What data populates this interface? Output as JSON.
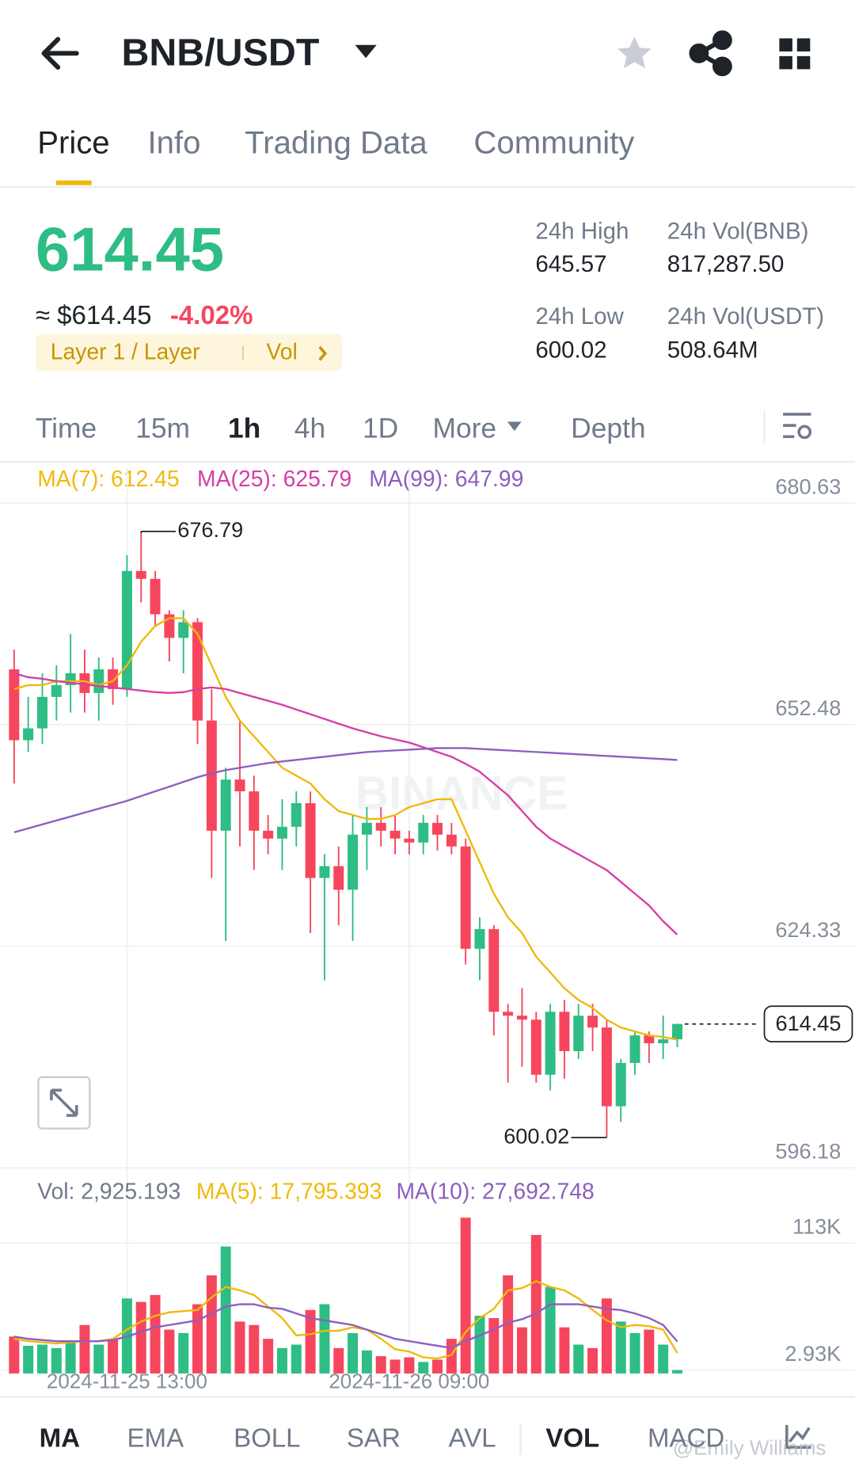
{
  "header": {
    "title": "BNB/USDT"
  },
  "tabs": [
    "Price",
    "Info",
    "Trading Data",
    "Community"
  ],
  "ticker": {
    "price": "614.45",
    "approx": "≈ $614.45",
    "change": "-4.02%",
    "tag": "Layer 1 / Layer",
    "tag_link": "Vol",
    "stats": [
      {
        "label": "24h High",
        "value": "645.57"
      },
      {
        "label": "24h Vol(BNB)",
        "value": "817,287.50"
      },
      {
        "label": "24h Low",
        "value": "600.02"
      },
      {
        "label": "24h Vol(USDT)",
        "value": "508.64M"
      }
    ]
  },
  "intervals": [
    "Time",
    "15m",
    "1h",
    "4h",
    "1D",
    "More",
    "Depth"
  ],
  "chart_data": [
    {
      "type": "candlestick",
      "legend": [
        {
          "text": "MA(7): 612.45",
          "color": "#f0b90b"
        },
        {
          "text": "MA(25): 625.79",
          "color": "#d63fa4"
        },
        {
          "text": "MA(99): 647.99",
          "color": "#8c5fbf"
        }
      ],
      "up_color": "#2ebd85",
      "down_color": "#f6465d",
      "ylim": [
        596.18,
        680.63
      ],
      "yticks": [
        680.63,
        652.48,
        624.33,
        596.18
      ],
      "xticks": [
        {
          "value": 8,
          "label": "2024-11-25 13:00"
        },
        {
          "value": 28,
          "label": "2024-11-26 09:00"
        }
      ],
      "grid": true,
      "candles": [
        {
          "open": 659.5,
          "high": 662.0,
          "low": 645.0,
          "close": 650.5
        },
        {
          "open": 650.5,
          "high": 656.0,
          "low": 649.0,
          "close": 652.0
        },
        {
          "open": 652.0,
          "high": 659.0,
          "low": 650.0,
          "close": 656.0
        },
        {
          "open": 656.0,
          "high": 660.0,
          "low": 653.0,
          "close": 657.5
        },
        {
          "open": 657.5,
          "high": 664.0,
          "low": 654.0,
          "close": 659.0
        },
        {
          "open": 659.0,
          "high": 662.0,
          "low": 654.0,
          "close": 656.5
        },
        {
          "open": 656.5,
          "high": 661.0,
          "low": 653.0,
          "close": 659.5
        },
        {
          "open": 659.5,
          "high": 661.0,
          "low": 655.0,
          "close": 657.0
        },
        {
          "open": 657.0,
          "high": 674.0,
          "low": 656.0,
          "close": 672.0
        },
        {
          "open": 672.0,
          "high": 676.79,
          "low": 668.0,
          "close": 671.0
        },
        {
          "open": 671.0,
          "high": 672.0,
          "low": 665.0,
          "close": 666.5
        },
        {
          "open": 666.5,
          "high": 667.0,
          "low": 660.5,
          "close": 663.5
        },
        {
          "open": 663.5,
          "high": 667.0,
          "low": 659.0,
          "close": 665.5
        },
        {
          "open": 665.5,
          "high": 666.0,
          "low": 650.0,
          "close": 653.0
        },
        {
          "open": 653.0,
          "high": 657.0,
          "low": 633.0,
          "close": 639.0
        },
        {
          "open": 639.0,
          "high": 647.0,
          "low": 625.0,
          "close": 645.5
        },
        {
          "open": 645.5,
          "high": 653.0,
          "low": 637.0,
          "close": 644.0
        },
        {
          "open": 644.0,
          "high": 646.0,
          "low": 634.0,
          "close": 639.0
        },
        {
          "open": 639.0,
          "high": 641.0,
          "low": 636.0,
          "close": 638.0
        },
        {
          "open": 638.0,
          "high": 643.0,
          "low": 634.0,
          "close": 639.5
        },
        {
          "open": 639.5,
          "high": 644.0,
          "low": 637.0,
          "close": 642.5
        },
        {
          "open": 642.5,
          "high": 644.0,
          "low": 626.0,
          "close": 633.0
        },
        {
          "open": 633.0,
          "high": 636.0,
          "low": 620.0,
          "close": 634.5
        },
        {
          "open": 634.5,
          "high": 637.0,
          "low": 627.0,
          "close": 631.5
        },
        {
          "open": 631.5,
          "high": 641.0,
          "low": 625.0,
          "close": 638.5
        },
        {
          "open": 638.5,
          "high": 642.0,
          "low": 634.0,
          "close": 640.0
        },
        {
          "open": 640.0,
          "high": 642.0,
          "low": 637.0,
          "close": 639.0
        },
        {
          "open": 639.0,
          "high": 641.0,
          "low": 636.0,
          "close": 638.0
        },
        {
          "open": 638.0,
          "high": 639.0,
          "low": 636.0,
          "close": 637.5
        },
        {
          "open": 637.5,
          "high": 641.0,
          "low": 636.0,
          "close": 640.0
        },
        {
          "open": 640.0,
          "high": 641.0,
          "low": 636.5,
          "close": 638.5
        },
        {
          "open": 638.5,
          "high": 640.0,
          "low": 636.0,
          "close": 637.0
        },
        {
          "open": 637.0,
          "high": 638.0,
          "low": 622.0,
          "close": 624.0
        },
        {
          "open": 624.0,
          "high": 628.0,
          "low": 620.0,
          "close": 626.5
        },
        {
          "open": 626.5,
          "high": 627.0,
          "low": 613.0,
          "close": 616.0
        },
        {
          "open": 616.0,
          "high": 617.0,
          "low": 607.0,
          "close": 615.5
        },
        {
          "open": 615.5,
          "high": 619.0,
          "low": 609.0,
          "close": 615.0
        },
        {
          "open": 615.0,
          "high": 616.0,
          "low": 607.0,
          "close": 608.0
        },
        {
          "open": 608.0,
          "high": 617.0,
          "low": 606.0,
          "close": 616.0
        },
        {
          "open": 616.0,
          "high": 617.5,
          "low": 607.5,
          "close": 611.0
        },
        {
          "open": 611.0,
          "high": 617.0,
          "low": 610.0,
          "close": 615.5
        },
        {
          "open": 615.5,
          "high": 617.0,
          "low": 611.0,
          "close": 614.0
        },
        {
          "open": 614.0,
          "high": 615.0,
          "low": 600.02,
          "close": 604.0
        },
        {
          "open": 604.0,
          "high": 610.0,
          "low": 602.0,
          "close": 609.5
        },
        {
          "open": 609.5,
          "high": 613.5,
          "low": 608.0,
          "close": 613.0
        },
        {
          "open": 613.0,
          "high": 613.5,
          "low": 609.5,
          "close": 612.0
        },
        {
          "open": 612.0,
          "high": 615.5,
          "low": 610.0,
          "close": 612.5
        },
        {
          "open": 612.5,
          "high": 614.5,
          "low": 611.5,
          "close": 614.45
        }
      ],
      "series": [
        {
          "name": "MA(7)",
          "color": "#f0b90b",
          "values": [
            657,
            657.5,
            657.5,
            658,
            658,
            658,
            657.5,
            658,
            660,
            663,
            665,
            666,
            666,
            664,
            660,
            656,
            653,
            651,
            649,
            647,
            646,
            645,
            643,
            641.5,
            641,
            640.5,
            640.5,
            641,
            642,
            642.5,
            643,
            643,
            639,
            635,
            631,
            628,
            626,
            623,
            621,
            619,
            617.5,
            616.5,
            615,
            614,
            613.5,
            613,
            612.8,
            612.45
          ]
        },
        {
          "name": "MA(25)",
          "color": "#d63fa4",
          "values": [
            659,
            658.5,
            658.3,
            658,
            657.8,
            657.6,
            657.4,
            657.2,
            657,
            656.8,
            656.6,
            656.5,
            656.6,
            657,
            657.2,
            657,
            656.5,
            656,
            655.5,
            655,
            654.4,
            653.8,
            653.2,
            652.6,
            652,
            651.5,
            651,
            650.6,
            650.2,
            649.6,
            649,
            648.4,
            647.5,
            646.5,
            645,
            643.5,
            641.5,
            639.5,
            638,
            637,
            636,
            635,
            634,
            632.5,
            631,
            629.5,
            627.5,
            625.79
          ]
        },
        {
          "name": "MA(99)",
          "color": "#8c5fbf",
          "values": [
            638.8,
            639.3,
            639.8,
            640.3,
            640.8,
            641.3,
            641.8,
            642.3,
            642.8,
            643.4,
            644,
            644.6,
            645.2,
            645.8,
            646.3,
            646.7,
            647,
            647.3,
            647.6,
            647.8,
            648,
            648.2,
            648.4,
            648.6,
            648.8,
            649,
            649.1,
            649.2,
            649.3,
            649.4,
            649.5,
            649.5,
            649.5,
            649.4,
            649.3,
            649.2,
            649.1,
            649,
            648.9,
            648.8,
            648.7,
            648.6,
            648.5,
            648.4,
            648.3,
            648.2,
            648.1,
            647.99
          ]
        }
      ]
    },
    {
      "type": "bar",
      "legend": [
        {
          "text": "Vol: 2,925.193",
          "color": "#707a8a"
        },
        {
          "text": "MA(5): 17,795.393",
          "color": "#f0b90b"
        },
        {
          "text": "MA(10): 27,692.748",
          "color": "#8c5fbf"
        }
      ],
      "ylim": [
        0,
        145000
      ],
      "yticks": [
        {
          "value": 113000,
          "label": "113K"
        },
        {
          "value": 2930,
          "label": "2.93K"
        }
      ],
      "values": [
        32000,
        24000,
        25000,
        22000,
        28000,
        42000,
        25000,
        30000,
        65000,
        62000,
        68000,
        38000,
        35000,
        60000,
        85000,
        110000,
        45000,
        42000,
        30000,
        22000,
        25000,
        55000,
        60000,
        22000,
        35000,
        20000,
        15000,
        12000,
        14000,
        10000,
        12000,
        30000,
        135000,
        50000,
        48000,
        85000,
        40000,
        120000,
        75000,
        40000,
        25000,
        22000,
        65000,
        45000,
        35000,
        38000,
        25000,
        2925.193
      ],
      "series": [
        {
          "name": "MA(5)",
          "color": "#f0b90b",
          "values": [
            30000,
            28000,
            27000,
            26000,
            27000,
            28000,
            28000,
            30000,
            38000,
            45000,
            50000,
            53000,
            54000,
            55000,
            66000,
            75000,
            72000,
            68000,
            58000,
            48000,
            33000,
            34000,
            37000,
            37000,
            40000,
            38000,
            30000,
            21000,
            19000,
            14000,
            13000,
            16000,
            36000,
            48000,
            56000,
            72000,
            74000,
            80000,
            75000,
            72000,
            65000,
            55000,
            46000,
            40000,
            42000,
            41000,
            38000,
            17795.393
          ]
        },
        {
          "name": "MA(10)",
          "color": "#8c5fbf",
          "values": [
            32000,
            30000,
            29000,
            28000,
            28000,
            28000,
            28000,
            29000,
            32000,
            36000,
            40000,
            42000,
            44000,
            46000,
            52000,
            58000,
            60000,
            60000,
            57000,
            56000,
            52000,
            48000,
            46000,
            44000,
            42000,
            38000,
            34000,
            30000,
            28000,
            26000,
            24000,
            22000,
            28000,
            33000,
            38000,
            44000,
            47000,
            52000,
            60000,
            60000,
            60000,
            58000,
            56000,
            55000,
            52000,
            48000,
            42000,
            27692.748
          ]
        }
      ]
    }
  ],
  "indicators": [
    "MA",
    "EMA",
    "BOLL",
    "SAR",
    "AVL",
    "VOL",
    "MACD"
  ],
  "brand": "BINANCE",
  "watermark": "@Emily Williams"
}
